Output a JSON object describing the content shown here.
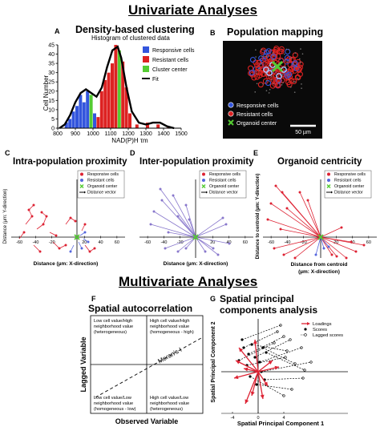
{
  "titles": {
    "univariate": "Univariate Analyses",
    "multivariate": "Multivariate Analyses"
  },
  "panelA": {
    "letter": "A",
    "title": "Density-based clustering",
    "subtitle": "Histogram of clustered data",
    "ylabel": "Cell Number",
    "xlabel": "NAD(P)H τm",
    "legend": [
      "Responsive cells",
      "Resistant cells",
      "Cluster center",
      "Fit"
    ],
    "colors": {
      "responsive": "#3355dd",
      "resistant": "#dd2222",
      "center": "#55cc33",
      "fit": "#000000"
    }
  },
  "panelB": {
    "letter": "B",
    "title": "Population mapping",
    "legend": [
      "Responsive cells",
      "Resistant cells",
      "Organoid center"
    ],
    "scalebar": "50 µm"
  },
  "panelC": {
    "letter": "C",
    "title": "Intra-population proximity",
    "legend": [
      "Responsive cells",
      "Resistant cells",
      "Organoid center",
      "Distance vector"
    ],
    "xlabel": "Distance (µm: X-direction)",
    "ylabel": "Distance (µm: Y-direction)",
    "xticks": [
      "-60",
      "-40",
      "-20",
      "20",
      "40",
      "60"
    ]
  },
  "panelD": {
    "letter": "D",
    "title": "Inter-population proximity",
    "legend": [
      "Responsive cells",
      "Resistant cells",
      "Organoid center",
      "Distance vector"
    ],
    "xlabel": "Distance (µm: X-direction)",
    "xticks": [
      "-60",
      "-40",
      "-20",
      "20",
      "40",
      "60"
    ]
  },
  "panelE": {
    "letter": "E",
    "title": "Organoid centricity",
    "legend": [
      "Responsive cells",
      "Resistant cells",
      "Organoid center",
      "Distance vector"
    ],
    "xlabel1": "Distance from centroid",
    "xlabel2": "(µm: X-direction)",
    "ylabel": "Distance to centroid (µm: Y-direction)",
    "xticks": [
      "-60",
      "-40",
      "-20",
      "20",
      "40",
      "60"
    ]
  },
  "panelF": {
    "letter": "F",
    "title": "Spatial autocorrelation",
    "quadrants": {
      "tl": [
        "Low cell value/High",
        "neighborhood value",
        "(heterogeneous)"
      ],
      "tr": [
        "High cell value/High",
        "neighborhood value",
        "(homogeneous - high)"
      ],
      "bl": [
        "Low cell value/Low",
        "neighborhood value",
        "(homogeneous - low)"
      ],
      "br": [
        "High cell value/Low",
        "neighborhood value",
        "(heterogeneous)"
      ]
    },
    "line_label": "Moran's I",
    "ylabel": "Lagged Variable",
    "xlabel": "Observed Variable"
  },
  "panelG": {
    "letter": "G",
    "title1": "Spatial principal",
    "title2": "components analysis",
    "legend": [
      "Loadings",
      "Scores",
      "Lagged scores"
    ],
    "xlabel": "Spatial Principal Component 1",
    "ylabel": "Spatial Principal Component 2",
    "xticks": [
      "-4",
      "0",
      "4"
    ]
  },
  "chart_data": {
    "type": "bar",
    "title": "Density-based clustering",
    "subtitle": "Histogram of clustered data",
    "xlabel": "NAD(P)H τm",
    "ylabel": "Cell Number",
    "xlim": [
      800,
      1500
    ],
    "ylim": [
      0,
      45
    ],
    "xticks": [
      800,
      900,
      1000,
      1100,
      1200,
      1300,
      1400,
      1500
    ],
    "yticks": [
      0,
      5,
      10,
      15,
      20,
      25,
      30,
      35,
      40,
      45
    ],
    "bin_width": 20,
    "bins": [
      {
        "x": 840,
        "value": 3,
        "group": "responsive"
      },
      {
        "x": 860,
        "value": 5,
        "group": "responsive"
      },
      {
        "x": 880,
        "value": 9,
        "group": "responsive"
      },
      {
        "x": 900,
        "value": 12,
        "group": "responsive"
      },
      {
        "x": 920,
        "value": 18,
        "group": "responsive"
      },
      {
        "x": 940,
        "value": 14,
        "group": "responsive"
      },
      {
        "x": 960,
        "value": 20,
        "group": "responsive"
      },
      {
        "x": 980,
        "value": 18,
        "group": "center"
      },
      {
        "x": 1000,
        "value": 8,
        "group": "responsive"
      },
      {
        "x": 1020,
        "value": 6,
        "group": "resistant"
      },
      {
        "x": 1040,
        "value": 20,
        "group": "resistant"
      },
      {
        "x": 1060,
        "value": 26,
        "group": "resistant"
      },
      {
        "x": 1080,
        "value": 30,
        "group": "resistant"
      },
      {
        "x": 1100,
        "value": 35,
        "group": "resistant"
      },
      {
        "x": 1120,
        "value": 45,
        "group": "resistant"
      },
      {
        "x": 1140,
        "value": 42,
        "group": "center"
      },
      {
        "x": 1160,
        "value": 36,
        "group": "resistant"
      },
      {
        "x": 1180,
        "value": 22,
        "group": "resistant"
      },
      {
        "x": 1200,
        "value": 8,
        "group": "resistant"
      },
      {
        "x": 1240,
        "value": 2,
        "group": "resistant"
      },
      {
        "x": 1300,
        "value": 3,
        "group": "resistant"
      },
      {
        "x": 1360,
        "value": 2,
        "group": "resistant"
      },
      {
        "x": 1420,
        "value": 1,
        "group": "resistant"
      }
    ],
    "fit": {
      "name": "Fit",
      "x": [
        810,
        840,
        870,
        900,
        930,
        960,
        990,
        1020,
        1050,
        1080,
        1110,
        1140,
        1160,
        1190,
        1220,
        1260,
        1300,
        1340,
        1380,
        1420,
        1460
      ],
      "y": [
        0,
        2,
        7,
        14,
        19,
        21,
        19,
        17,
        22,
        33,
        42,
        44,
        38,
        22,
        9,
        3,
        2,
        3,
        3,
        1,
        0
      ]
    }
  }
}
